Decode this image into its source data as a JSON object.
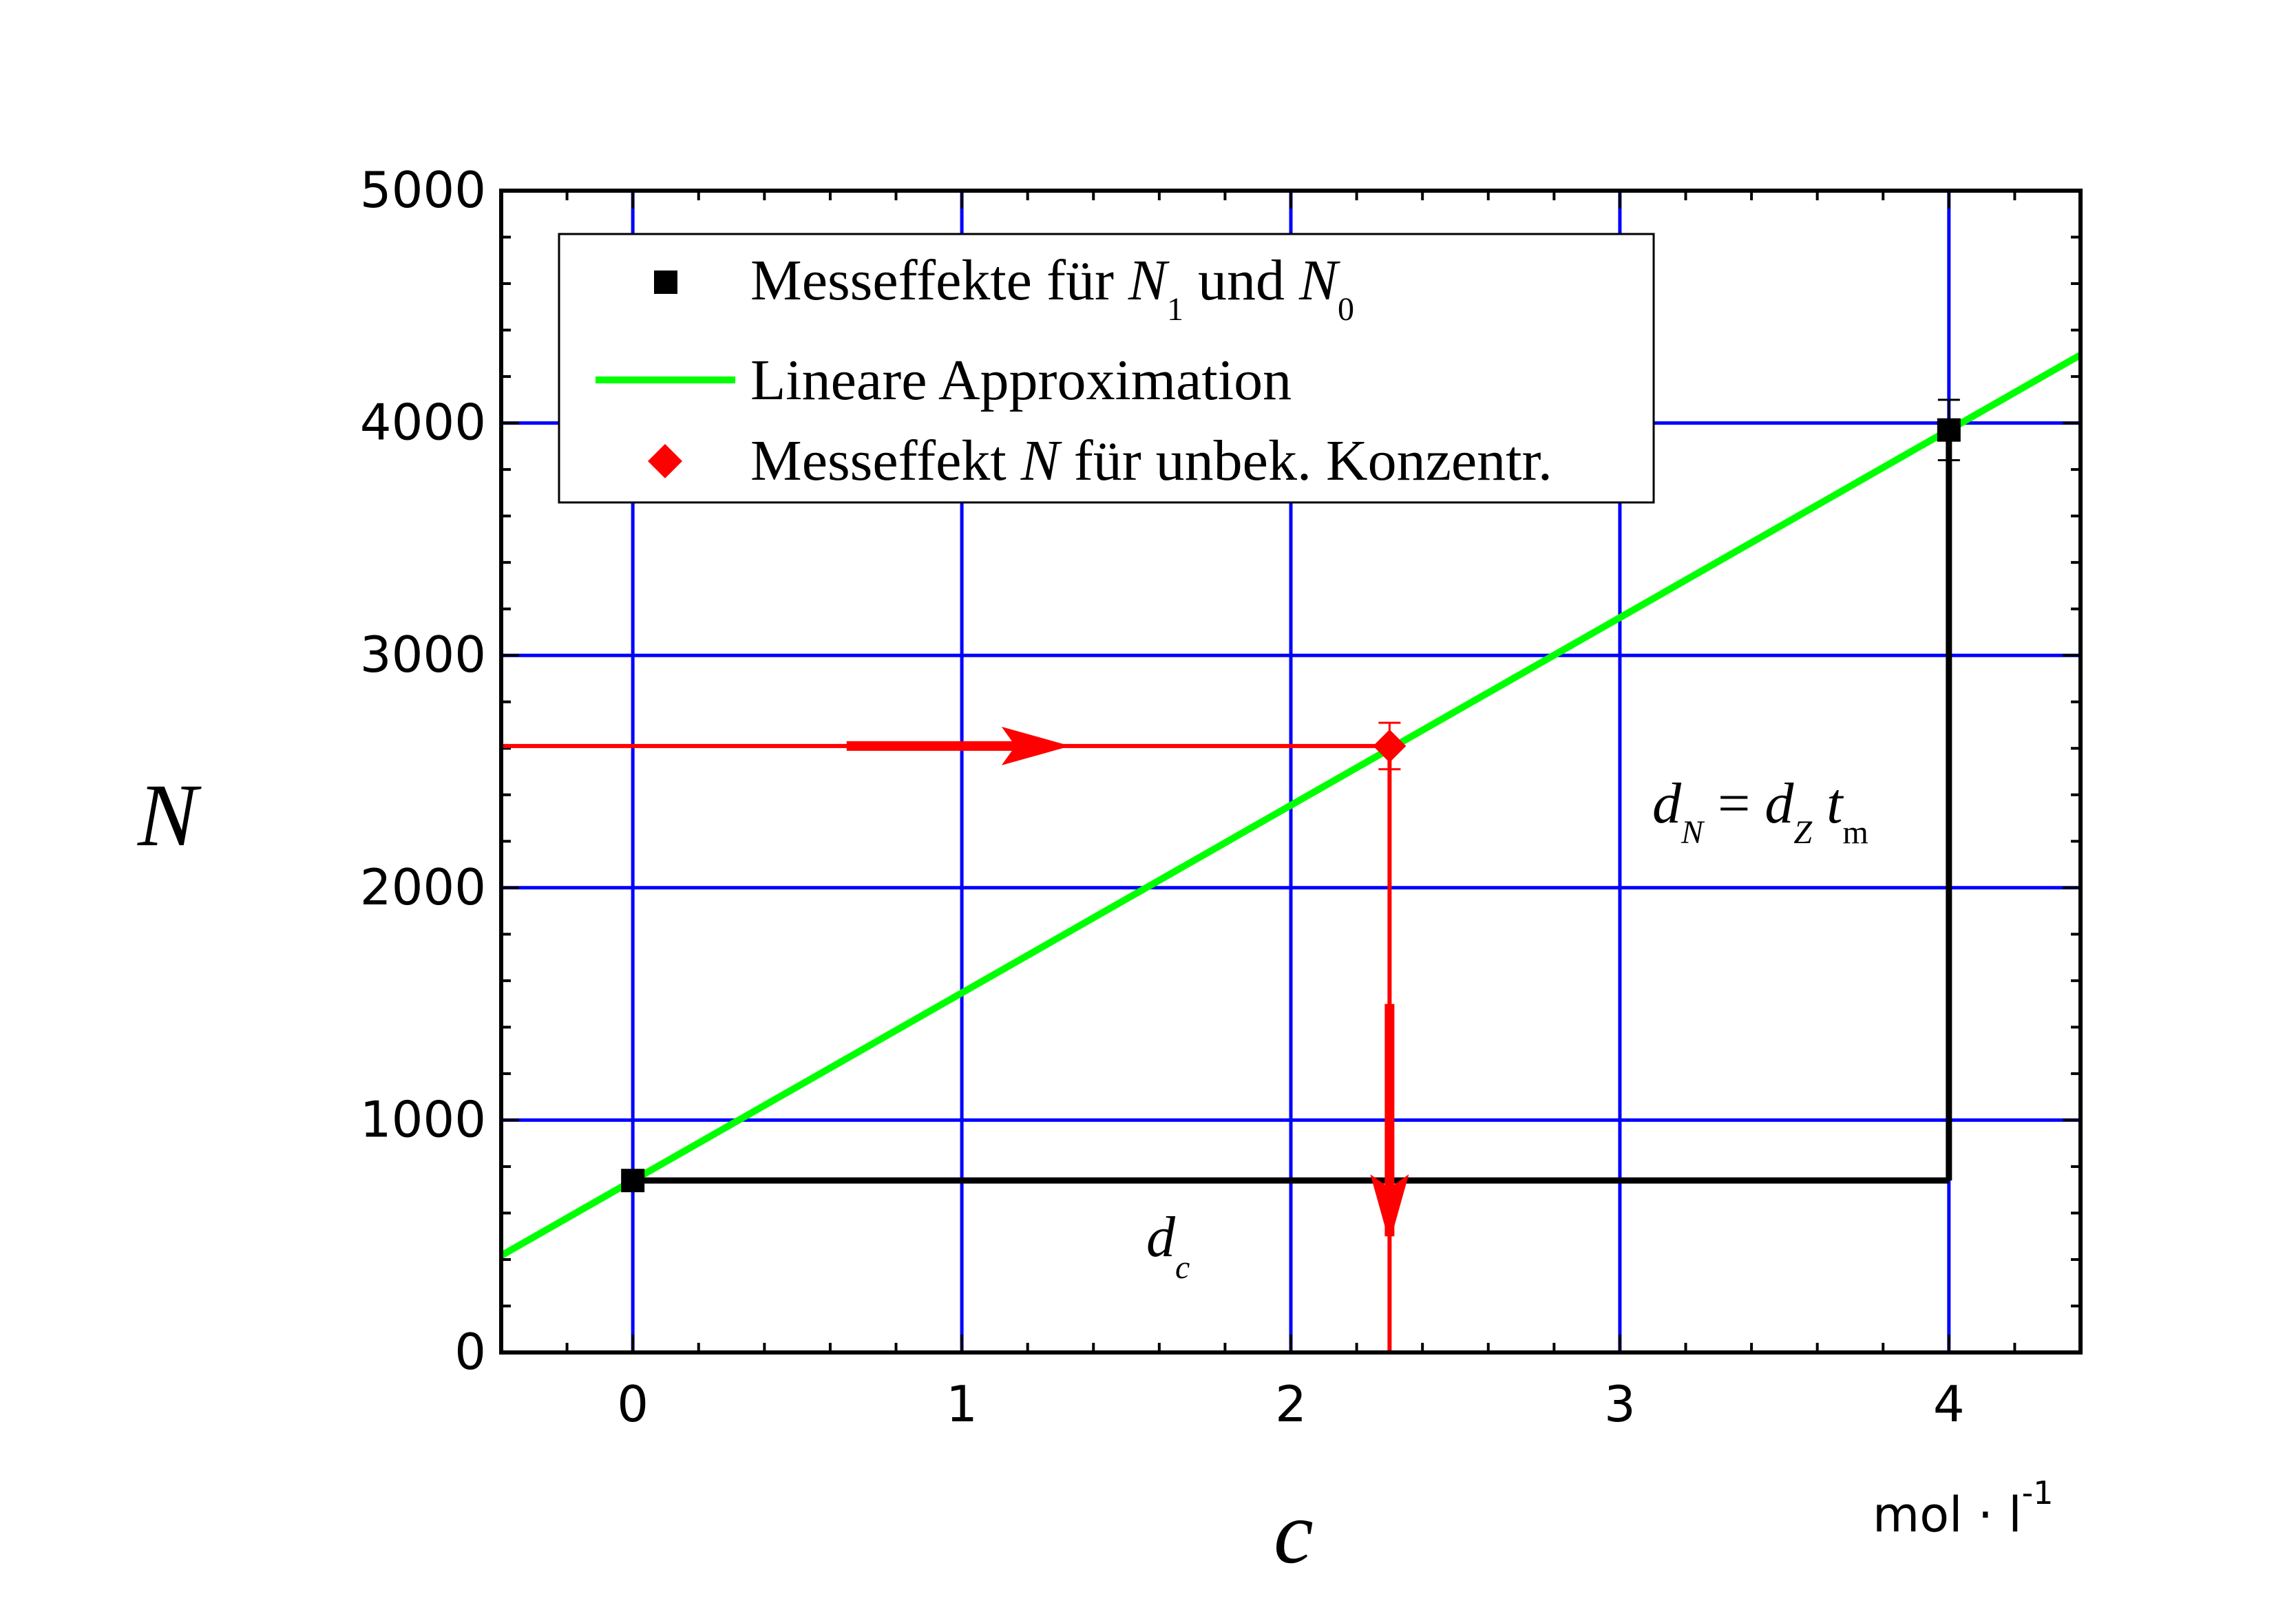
{
  "chart_data": {
    "type": "line",
    "xlabel": "c",
    "x_unit": "mol · l",
    "x_unit_exponent": "-1",
    "ylabel": "N",
    "xlim": [
      -0.4,
      4.4
    ],
    "ylim": [
      0,
      5000
    ],
    "x_ticks": [
      "0",
      "1",
      "2",
      "3",
      "4"
    ],
    "y_ticks": [
      "0",
      "1000",
      "2000",
      "3000",
      "4000",
      "5000"
    ],
    "grid": true,
    "grid_color": "#0000ff",
    "legend_position": "top-left",
    "legend": [
      {
        "marker": "square",
        "color": "#000000",
        "text": "Messeffekte für ",
        "parts": [
          "N",
          "1",
          " und ",
          "N",
          "0"
        ]
      },
      {
        "marker": "line",
        "color": "#00ff00",
        "text": "Lineare Approximation"
      },
      {
        "marker": "diamond",
        "color": "#ff0000",
        "text": "Messeffekt ",
        "italic": "N",
        "rest": " für unbek. Konzentr."
      }
    ],
    "series": [
      {
        "name": "Messeffekte für N1 und N0",
        "type": "scatter",
        "marker": "square",
        "color": "#000000",
        "x": [
          0,
          4
        ],
        "y": [
          740,
          3970
        ],
        "error": [
          0,
          130
        ]
      },
      {
        "name": "Lineare Approximation",
        "type": "line",
        "color": "#00ff00",
        "x": [
          -0.4,
          4.4
        ],
        "y": [
          417,
          4293
        ]
      },
      {
        "name": "Messeffekt N für unbek. Konzentr.",
        "type": "scatter",
        "marker": "diamond",
        "color": "#ff0000",
        "x": [
          2.3
        ],
        "y": [
          2610
        ],
        "error": [
          100
        ]
      }
    ],
    "annotations": {
      "dN_label": {
        "base": "d",
        "sub": "N",
        "eq": " = ",
        "base2": "d",
        "sub2": "Z",
        "t": "t",
        "sub3": "m"
      },
      "dc_label": {
        "base": "d",
        "sub": "c"
      }
    },
    "colors": {
      "axis": "#000000",
      "red": "#ff0000",
      "black": "#000000"
    }
  }
}
